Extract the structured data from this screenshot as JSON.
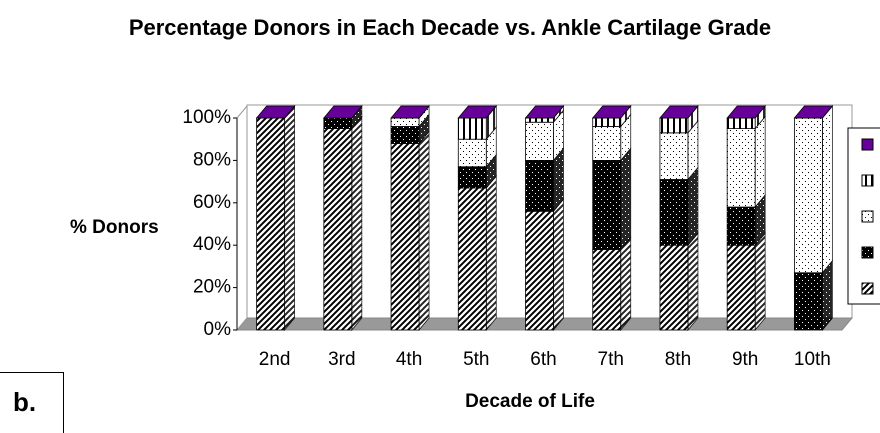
{
  "chart_data": {
    "type": "bar3d_stacked",
    "title": "Percentage Donors in Each Decade vs. Ankle Cartilage Grade",
    "xlabel": "Decade of Life",
    "ylabel": "% Donors",
    "panel_label": "b.",
    "categories": [
      "2nd",
      "3rd",
      "4th",
      "5th",
      "6th",
      "7th",
      "8th",
      "9th",
      "10th"
    ],
    "series": [
      {
        "color": "#ffffff",
        "pattern": "diagonal",
        "values": [
          100,
          95,
          88,
          67,
          56,
          38,
          40,
          40,
          0
        ]
      },
      {
        "color": "#000000",
        "pattern": "dots",
        "values": [
          0,
          5,
          8,
          10,
          24,
          42,
          31,
          18,
          27
        ]
      },
      {
        "color": "#ffffff",
        "pattern": "dots",
        "values": [
          0,
          0,
          4,
          13,
          18,
          16,
          22,
          37,
          73
        ]
      },
      {
        "color": "#ffffff",
        "pattern": "vertical",
        "values": [
          0,
          0,
          0,
          10,
          2,
          4,
          7,
          5,
          0
        ]
      },
      {
        "color": "#660099",
        "pattern": "solid",
        "values": [
          0,
          0,
          0,
          0,
          0,
          0,
          0,
          0,
          0
        ]
      }
    ],
    "ylim": [
      0,
      100
    ],
    "yticks": [
      {
        "value": 0,
        "label": "0%"
      },
      {
        "value": 20,
        "label": "20%"
      },
      {
        "value": 40,
        "label": "40%"
      },
      {
        "value": 60,
        "label": "60%"
      },
      {
        "value": 80,
        "label": "80%"
      },
      {
        "value": 100,
        "label": "100%"
      }
    ],
    "grid": false,
    "legend": "right"
  }
}
